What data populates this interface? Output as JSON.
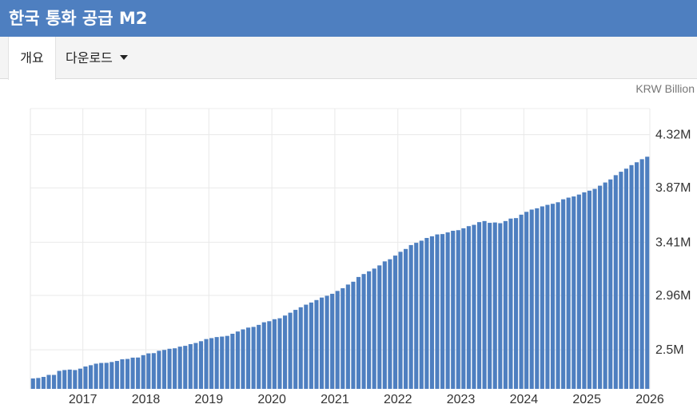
{
  "header": {
    "title": "한국 통화 공급 M2"
  },
  "tabs": {
    "overview_label": "개요",
    "download_label": "다운로드"
  },
  "chart_data": {
    "type": "bar",
    "unit_label": "KRW Billion",
    "x_tick_labels": [
      "2017",
      "2018",
      "2019",
      "2020",
      "2021",
      "2022",
      "2023",
      "2024",
      "2025",
      "2026"
    ],
    "y_tick_labels": [
      "2.5M",
      "2.96M",
      "3.41M",
      "3.87M",
      "4.32M"
    ],
    "y_ticks": [
      2500000,
      2960000,
      3410000,
      3870000,
      4320000
    ],
    "ylim": [
      2170000,
      4540000
    ],
    "x_start": "2016-03",
    "x_end": "2025-12",
    "grid": true,
    "bar_color": "#4e7fc0",
    "values": [
      2258000,
      2262000,
      2271000,
      2288000,
      2288000,
      2322000,
      2329000,
      2333000,
      2329000,
      2341000,
      2359000,
      2370000,
      2383000,
      2389000,
      2390000,
      2397000,
      2406000,
      2420000,
      2423000,
      2434000,
      2435000,
      2455000,
      2470000,
      2472000,
      2492000,
      2499000,
      2509000,
      2513000,
      2527000,
      2534000,
      2548000,
      2558000,
      2573000,
      2591000,
      2599000,
      2608000,
      2612000,
      2618000,
      2636000,
      2655000,
      2673000,
      2688000,
      2694000,
      2711000,
      2733000,
      2742000,
      2759000,
      2767000,
      2790000,
      2814000,
      2838000,
      2860000,
      2882000,
      2900000,
      2921000,
      2942000,
      2957000,
      2974000,
      2998000,
      3021000,
      3052000,
      3076000,
      3116000,
      3141000,
      3164000,
      3187000,
      3214000,
      3248000,
      3266000,
      3297000,
      3329000,
      3353000,
      3386000,
      3405000,
      3423000,
      3446000,
      3460000,
      3476000,
      3479000,
      3493000,
      3507000,
      3512000,
      3528000,
      3546000,
      3557000,
      3580000,
      3589000,
      3574000,
      3577000,
      3571000,
      3589000,
      3610000,
      3614000,
      3643000,
      3667000,
      3686000,
      3697000,
      3713000,
      3726000,
      3735000,
      3748000,
      3773000,
      3787000,
      3797000,
      3813000,
      3832000,
      3846000,
      3861000,
      3888000,
      3915000,
      3941000,
      3977000,
      4006000,
      4032000,
      4062000,
      4086000,
      4112000,
      4133000
    ]
  }
}
